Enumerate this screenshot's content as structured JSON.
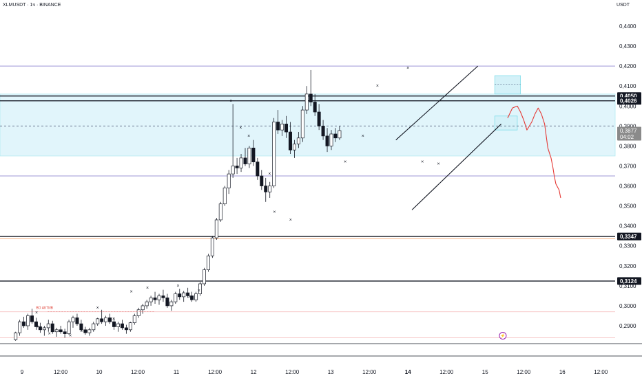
{
  "header": {
    "symbol": "XLMUSDT · 1ч · BINANCE",
    "currency": "USDT"
  },
  "colors": {
    "up": "#ffffff",
    "down": "#131722",
    "wick": "#131722",
    "zone": "#e1f5fb",
    "zone_border": "#b2ebf2",
    "purple_line": "#9c95d6",
    "forecast": "#e53935",
    "axis_text": "#131722"
  },
  "chart_data": {
    "type": "candlestick",
    "title": "XLMUSDT",
    "ylim": [
      0.2815,
      0.4475
    ],
    "x_ticks": [
      "9",
      "12:00",
      "10",
      "12:00",
      "11",
      "12:00",
      "12",
      "12:00",
      "13",
      "12:00",
      "14",
      "12:00",
      "15",
      "12:00",
      "16",
      "12:00"
    ],
    "x_tick_bold": [
      false,
      false,
      false,
      false,
      false,
      false,
      false,
      false,
      false,
      false,
      true,
      false,
      false,
      false,
      false,
      false
    ],
    "y_ticks": [
      "0,4400",
      "0,4300",
      "0,4200",
      "0,4100",
      "0,4000",
      "0,3900",
      "0,3800",
      "0,3700",
      "0,3600",
      "0,3500",
      "0,3400",
      "0,3300",
      "0,3200",
      "0,3100",
      "0,3000",
      "0,2900"
    ],
    "y_tick_values": [
      0.44,
      0.43,
      0.42,
      0.41,
      0.4,
      0.39,
      0.38,
      0.37,
      0.36,
      0.35,
      0.34,
      0.33,
      0.32,
      0.31,
      0.3,
      0.29
    ],
    "x_tick_slots": [
      0,
      24,
      48,
      72,
      96,
      120,
      144,
      168,
      192,
      216,
      240,
      264,
      288,
      312,
      336,
      360
    ],
    "slot_offset": -8,
    "slot_count": 374,
    "candles": [
      [
        0.283,
        0.287,
        0.2825,
        0.2865
      ],
      [
        0.2865,
        0.293,
        0.285,
        0.292
      ],
      [
        0.292,
        0.2945,
        0.289,
        0.29
      ],
      [
        0.29,
        0.296,
        0.288,
        0.295
      ],
      [
        0.295,
        0.2985,
        0.291,
        0.292
      ],
      [
        0.292,
        0.294,
        0.288,
        0.2895
      ],
      [
        0.2895,
        0.2915,
        0.2865,
        0.288
      ],
      [
        0.288,
        0.29,
        0.285,
        0.289
      ],
      [
        0.289,
        0.293,
        0.287,
        0.291
      ],
      [
        0.291,
        0.2925,
        0.286,
        0.287
      ],
      [
        0.287,
        0.289,
        0.2845,
        0.288
      ],
      [
        0.288,
        0.29,
        0.286,
        0.287
      ],
      [
        0.287,
        0.2885,
        0.284,
        0.286
      ],
      [
        0.286,
        0.293,
        0.2855,
        0.292
      ],
      [
        0.292,
        0.295,
        0.289,
        0.294
      ],
      [
        0.294,
        0.296,
        0.29,
        0.291
      ],
      [
        0.291,
        0.293,
        0.287,
        0.288
      ],
      [
        0.288,
        0.2895,
        0.2855,
        0.2865
      ],
      [
        0.2865,
        0.289,
        0.285,
        0.288
      ],
      [
        0.288,
        0.292,
        0.287,
        0.291
      ],
      [
        0.291,
        0.294,
        0.29,
        0.2935
      ],
      [
        0.2935,
        0.298,
        0.291,
        0.292
      ],
      [
        0.292,
        0.295,
        0.29,
        0.294
      ],
      [
        0.294,
        0.296,
        0.291,
        0.292
      ],
      [
        0.292,
        0.294,
        0.288,
        0.2895
      ],
      [
        0.2895,
        0.292,
        0.287,
        0.291
      ],
      [
        0.291,
        0.293,
        0.288,
        0.289
      ],
      [
        0.289,
        0.2905,
        0.286,
        0.288
      ],
      [
        0.288,
        0.292,
        0.287,
        0.2915
      ],
      [
        0.2915,
        0.296,
        0.2905,
        0.295
      ],
      [
        0.295,
        0.299,
        0.294,
        0.298
      ],
      [
        0.298,
        0.301,
        0.296,
        0.3
      ],
      [
        0.3,
        0.303,
        0.2985,
        0.302
      ],
      [
        0.302,
        0.305,
        0.3,
        0.304
      ],
      [
        0.304,
        0.307,
        0.301,
        0.303
      ],
      [
        0.303,
        0.306,
        0.3005,
        0.305
      ],
      [
        0.305,
        0.308,
        0.302,
        0.304
      ],
      [
        0.304,
        0.306,
        0.299,
        0.3
      ],
      [
        0.3,
        0.303,
        0.2975,
        0.302
      ],
      [
        0.302,
        0.307,
        0.301,
        0.306
      ],
      [
        0.306,
        0.3085,
        0.303,
        0.3045
      ],
      [
        0.3045,
        0.3075,
        0.302,
        0.3065
      ],
      [
        0.3065,
        0.309,
        0.304,
        0.305
      ],
      [
        0.305,
        0.307,
        0.302,
        0.303
      ],
      [
        0.303,
        0.307,
        0.302,
        0.306
      ],
      [
        0.306,
        0.312,
        0.305,
        0.311
      ],
      [
        0.311,
        0.319,
        0.31,
        0.318
      ],
      [
        0.318,
        0.326,
        0.317,
        0.325
      ],
      [
        0.325,
        0.335,
        0.324,
        0.334
      ],
      [
        0.334,
        0.344,
        0.333,
        0.343
      ],
      [
        0.343,
        0.352,
        0.342,
        0.351
      ],
      [
        0.351,
        0.36,
        0.35,
        0.359
      ],
      [
        0.359,
        0.368,
        0.356,
        0.366
      ],
      [
        0.366,
        0.401,
        0.364,
        0.37
      ],
      [
        0.37,
        0.374,
        0.366,
        0.369
      ],
      [
        0.369,
        0.376,
        0.367,
        0.374
      ],
      [
        0.374,
        0.379,
        0.37,
        0.371
      ],
      [
        0.371,
        0.38,
        0.369,
        0.379
      ],
      [
        0.379,
        0.383,
        0.37,
        0.372
      ],
      [
        0.372,
        0.374,
        0.363,
        0.365
      ],
      [
        0.365,
        0.368,
        0.358,
        0.36
      ],
      [
        0.36,
        0.364,
        0.352,
        0.357
      ],
      [
        0.357,
        0.362,
        0.354,
        0.36
      ],
      [
        0.36,
        0.394,
        0.359,
        0.392
      ],
      [
        0.392,
        0.398,
        0.386,
        0.388
      ],
      [
        0.388,
        0.393,
        0.385,
        0.391
      ],
      [
        0.391,
        0.395,
        0.384,
        0.387
      ],
      [
        0.387,
        0.392,
        0.376,
        0.378
      ],
      [
        0.378,
        0.383,
        0.374,
        0.381
      ],
      [
        0.381,
        0.387,
        0.379,
        0.384
      ],
      [
        0.384,
        0.4,
        0.382,
        0.398
      ],
      [
        0.398,
        0.41,
        0.396,
        0.406
      ],
      [
        0.406,
        0.418,
        0.4,
        0.402
      ],
      [
        0.402,
        0.406,
        0.395,
        0.397
      ],
      [
        0.397,
        0.401,
        0.388,
        0.39
      ],
      [
        0.39,
        0.393,
        0.383,
        0.385
      ],
      [
        0.385,
        0.389,
        0.377,
        0.38
      ],
      [
        0.38,
        0.388,
        0.378,
        0.386
      ],
      [
        0.386,
        0.389,
        0.382,
        0.384
      ],
      [
        0.384,
        0.39,
        0.383,
        0.3877
      ]
    ],
    "candle_start_slot": 112,
    "candle_slot_step": 2.55,
    "horizontal_lines": [
      {
        "value": 0.42,
        "color": "#9c95d6",
        "width": 1
      },
      {
        "value": 0.365,
        "color": "#9c95d6",
        "width": 1
      },
      {
        "value": 0.405,
        "color": "#131722",
        "width": 1.4
      },
      {
        "value": 0.4026,
        "color": "#131722",
        "width": 1.4
      },
      {
        "value": 0.3347,
        "color": "#131722",
        "width": 1.4
      },
      {
        "value": 0.3335,
        "color": "#f4b183",
        "width": 1
      },
      {
        "value": 0.3124,
        "color": "#131722",
        "width": 1.4
      },
      {
        "value": 0.297,
        "color": "#f7c6c6",
        "width": 1
      },
      {
        "value": 0.284,
        "color": "#f7c6c6",
        "width": 1
      }
    ],
    "zone": {
      "top": 0.406,
      "bottom": 0.375
    },
    "dashed_level": 0.39,
    "price_badges": [
      {
        "label": "0,4050",
        "value": 0.405,
        "bg": "#131722"
      },
      {
        "label": "0,4026",
        "value": 0.4026,
        "bg": "#131722"
      },
      {
        "label": "0,3877",
        "value": 0.3877,
        "bg": "#8a8a8a"
      },
      {
        "label": "0,3347",
        "value": 0.3347,
        "bg": "#131722"
      },
      {
        "label": "0,3124",
        "value": 0.3124,
        "bg": "#131722"
      }
    ],
    "countdown": "04:02",
    "channel": {
      "upper": [
        [
          240.5,
          0.383
        ],
        [
          291.5,
          0.42
        ]
      ],
      "lower": [
        [
          250.5,
          0.348
        ],
        [
          306.0,
          0.391
        ]
      ]
    },
    "forecast_path": [
      [
        310,
        0.394
      ],
      [
        313,
        0.399
      ],
      [
        316,
        0.4
      ],
      [
        318,
        0.397
      ],
      [
        320,
        0.393
      ],
      [
        322,
        0.388
      ],
      [
        325,
        0.392
      ],
      [
        327,
        0.396
      ],
      [
        329,
        0.399
      ],
      [
        331,
        0.396
      ],
      [
        333,
        0.391
      ],
      [
        334,
        0.385
      ],
      [
        335,
        0.379
      ],
      [
        337,
        0.374
      ],
      [
        338,
        0.37
      ],
      [
        339,
        0.365
      ],
      [
        340,
        0.361
      ],
      [
        342,
        0.358
      ],
      [
        343,
        0.354
      ]
    ],
    "xmarks": [
      [
        13,
        0.2965
      ],
      [
        14,
        0.2895
      ],
      [
        21,
        0.286
      ],
      [
        28,
        0.2875
      ],
      [
        34,
        0.285
      ],
      [
        41,
        0.2875
      ],
      [
        51,
        0.299
      ],
      [
        61,
        0.2935
      ],
      [
        72,
        0.307
      ],
      [
        82,
        0.309
      ],
      [
        101,
        0.31
      ],
      [
        108,
        0.3045
      ],
      [
        114,
        0.3075
      ],
      [
        134,
        0.4025
      ],
      [
        140,
        0.389
      ],
      [
        145,
        0.385
      ],
      [
        158,
        0.366
      ],
      [
        161,
        0.347
      ],
      [
        171,
        0.343
      ],
      [
        205,
        0.372
      ],
      [
        216,
        0.385
      ],
      [
        225,
        0.41
      ],
      [
        244,
        0.419
      ],
      [
        253,
        0.372
      ],
      [
        263,
        0.371
      ]
    ],
    "small_label": "ВО АКТИВ",
    "small_label_pos": [
      18,
      0.2985
    ],
    "flag_slot": 307,
    "flag_value": 0.284
  }
}
